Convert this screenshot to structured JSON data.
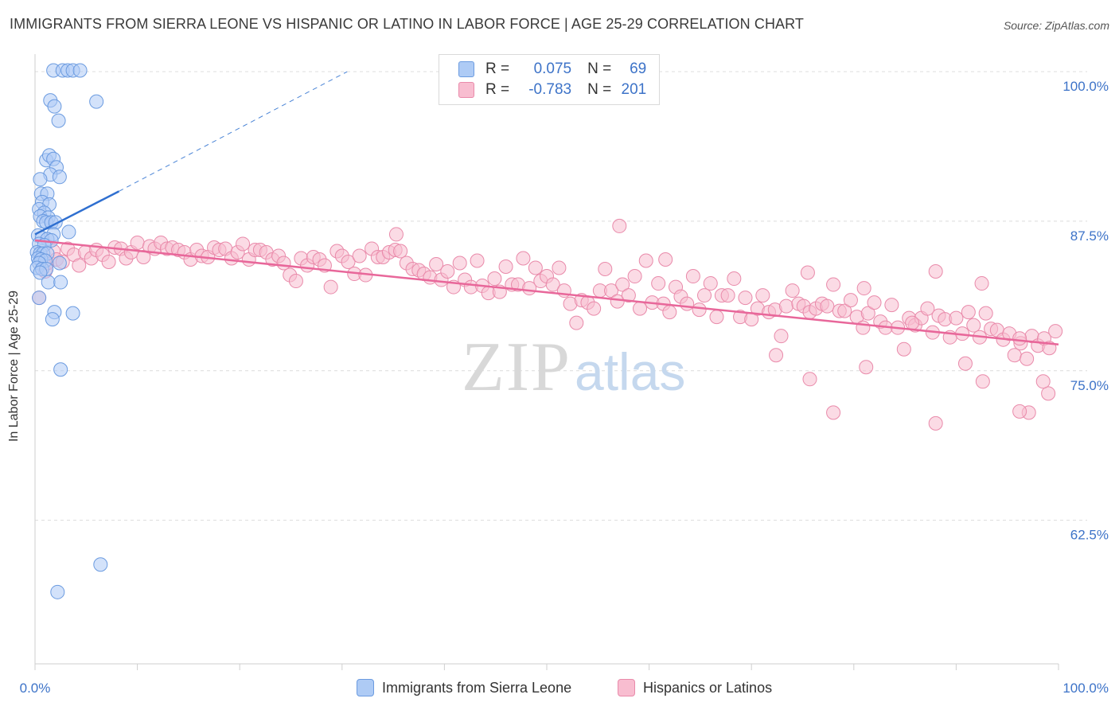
{
  "header": {
    "title": "IMMIGRANTS FROM SIERRA LEONE VS HISPANIC OR LATINO IN LABOR FORCE | AGE 25-29 CORRELATION CHART",
    "source": "Source: ZipAtlas.com"
  },
  "watermark": {
    "zip": "ZIP",
    "atlas": "atlas"
  },
  "legend": {
    "r_label": "R =",
    "n_label": "N =",
    "rows": [
      {
        "r": "0.075",
        "n": "69",
        "fill": "#aecbf5",
        "stroke": "#6b9be0"
      },
      {
        "r": "-0.783",
        "n": "201",
        "fill": "#f8bdd0",
        "stroke": "#e98aaa"
      }
    ]
  },
  "bottom_legend": {
    "items": [
      {
        "label": "Immigrants from Sierra Leone"
      },
      {
        "label": "Hispanics or Latinos"
      }
    ]
  },
  "chart_data": {
    "type": "scatter",
    "title": "IMMIGRANTS FROM SIERRA LEONE VS HISPANIC OR LATINO IN LABOR FORCE | AGE 25-29 CORRELATION CHART",
    "xlabel": "",
    "ylabel": "In Labor Force | Age 25-29",
    "xlim": [
      0,
      100
    ],
    "ylim": [
      50.5,
      101
    ],
    "x_tick_labels": [
      "0.0%",
      "100.0%"
    ],
    "y_ticks": [
      62.5,
      75.0,
      87.5,
      100.0
    ],
    "y_tick_labels": [
      "62.5%",
      "75.0%",
      "87.5%",
      "100.0%"
    ],
    "grid": "horizontal dashed",
    "legend_position": "top-center",
    "series": [
      {
        "name": "Immigrants from Sierra Leone",
        "color": "#6b9be0",
        "fill": "#aecbf5",
        "trend": {
          "x": [
            0,
            8.2
          ],
          "y": [
            86.4,
            90.0
          ],
          "extended_to": [
            30.5,
            100
          ]
        },
        "points": [
          [
            1.8,
            100.1
          ],
          [
            2.7,
            100.1
          ],
          [
            3.2,
            100.1
          ],
          [
            3.7,
            100.1
          ],
          [
            4.4,
            100.1
          ],
          [
            1.5,
            97.6
          ],
          [
            1.9,
            97.1
          ],
          [
            2.3,
            95.9
          ],
          [
            6.0,
            97.5
          ],
          [
            1.1,
            92.6
          ],
          [
            1.4,
            93.0
          ],
          [
            1.8,
            92.7
          ],
          [
            2.1,
            92.0
          ],
          [
            1.5,
            91.4
          ],
          [
            2.4,
            91.2
          ],
          [
            0.5,
            91.0
          ],
          [
            0.6,
            89.8
          ],
          [
            1.2,
            89.8
          ],
          [
            0.7,
            89.1
          ],
          [
            1.4,
            88.9
          ],
          [
            0.4,
            88.5
          ],
          [
            0.9,
            88.2
          ],
          [
            0.5,
            87.9
          ],
          [
            1.3,
            87.8
          ],
          [
            0.8,
            87.5
          ],
          [
            1.1,
            87.4
          ],
          [
            1.6,
            87.4
          ],
          [
            2.0,
            87.4
          ],
          [
            3.3,
            86.6
          ],
          [
            1.8,
            86.4
          ],
          [
            0.3,
            86.3
          ],
          [
            0.7,
            86.1
          ],
          [
            1.2,
            86.0
          ],
          [
            1.6,
            85.9
          ],
          [
            0.4,
            85.6
          ],
          [
            0.9,
            85.5
          ],
          [
            0.2,
            84.9
          ],
          [
            0.5,
            84.8
          ],
          [
            0.8,
            84.8
          ],
          [
            1.2,
            84.8
          ],
          [
            0.3,
            84.4
          ],
          [
            0.6,
            84.3
          ],
          [
            1.0,
            84.2
          ],
          [
            2.4,
            84.0
          ],
          [
            0.4,
            84.0
          ],
          [
            0.2,
            83.6
          ],
          [
            0.7,
            83.5
          ],
          [
            1.1,
            83.5
          ],
          [
            0.5,
            83.2
          ],
          [
            1.3,
            82.4
          ],
          [
            2.5,
            82.4
          ],
          [
            0.4,
            81.1
          ],
          [
            1.9,
            79.9
          ],
          [
            3.7,
            79.8
          ],
          [
            1.7,
            79.3
          ],
          [
            2.5,
            75.1
          ],
          [
            6.4,
            58.8
          ],
          [
            2.2,
            56.5
          ]
        ]
      },
      {
        "name": "Hispanics or Latinos",
        "color": "#e98aaa",
        "fill": "#f8bdd0",
        "trend": {
          "x": [
            0,
            100
          ],
          "y": [
            85.9,
            77.2
          ]
        },
        "points": [
          [
            0.4,
            81.1
          ],
          [
            1.0,
            83.3
          ],
          [
            1.2,
            84.0
          ],
          [
            1.8,
            85.0
          ],
          [
            2.1,
            84.3
          ],
          [
            2.7,
            84.1
          ],
          [
            3.2,
            85.2
          ],
          [
            3.8,
            84.7
          ],
          [
            4.3,
            83.8
          ],
          [
            4.9,
            84.9
          ],
          [
            5.5,
            84.4
          ],
          [
            6.0,
            85.1
          ],
          [
            6.6,
            84.7
          ],
          [
            7.2,
            84.1
          ],
          [
            7.8,
            85.3
          ],
          [
            8.4,
            85.2
          ],
          [
            8.9,
            84.4
          ],
          [
            9.4,
            84.9
          ],
          [
            10.0,
            85.7
          ],
          [
            10.6,
            84.5
          ],
          [
            11.2,
            85.4
          ],
          [
            11.7,
            85.2
          ],
          [
            12.3,
            85.7
          ],
          [
            12.9,
            85.2
          ],
          [
            13.4,
            85.3
          ],
          [
            14.0,
            85.1
          ],
          [
            14.6,
            84.9
          ],
          [
            15.2,
            84.3
          ],
          [
            15.8,
            85.1
          ],
          [
            16.3,
            84.6
          ],
          [
            16.9,
            84.5
          ],
          [
            17.5,
            85.3
          ],
          [
            18.0,
            85.1
          ],
          [
            18.6,
            85.2
          ],
          [
            19.2,
            84.4
          ],
          [
            19.8,
            84.9
          ],
          [
            20.3,
            85.6
          ],
          [
            20.9,
            84.3
          ],
          [
            21.5,
            85.1
          ],
          [
            22.0,
            85.1
          ],
          [
            22.6,
            84.9
          ],
          [
            23.2,
            84.3
          ],
          [
            23.8,
            84.6
          ],
          [
            24.3,
            84.0
          ],
          [
            24.9,
            83.0
          ],
          [
            25.5,
            82.5
          ],
          [
            26.0,
            84.4
          ],
          [
            26.6,
            83.8
          ],
          [
            27.2,
            84.5
          ],
          [
            27.8,
            84.3
          ],
          [
            28.3,
            83.8
          ],
          [
            28.9,
            82.0
          ],
          [
            29.5,
            85.0
          ],
          [
            30.0,
            84.6
          ],
          [
            30.6,
            84.1
          ],
          [
            31.2,
            83.1
          ],
          [
            31.7,
            84.6
          ],
          [
            32.3,
            83.0
          ],
          [
            32.9,
            85.2
          ],
          [
            33.5,
            84.5
          ],
          [
            34.0,
            84.5
          ],
          [
            34.6,
            84.9
          ],
          [
            35.2,
            85.1
          ],
          [
            35.7,
            85.0
          ],
          [
            36.3,
            84.0
          ],
          [
            36.9,
            83.5
          ],
          [
            37.5,
            83.4
          ],
          [
            38.0,
            83.1
          ],
          [
            38.6,
            82.8
          ],
          [
            39.2,
            83.9
          ],
          [
            39.7,
            82.6
          ],
          [
            40.3,
            83.3
          ],
          [
            40.9,
            82.0
          ],
          [
            41.5,
            84.0
          ],
          [
            42.0,
            82.6
          ],
          [
            42.6,
            82.0
          ],
          [
            43.2,
            84.2
          ],
          [
            43.7,
            82.1
          ],
          [
            44.3,
            81.5
          ],
          [
            44.9,
            82.7
          ],
          [
            45.4,
            81.6
          ],
          [
            46.0,
            83.7
          ],
          [
            46.6,
            82.2
          ],
          [
            47.2,
            82.2
          ],
          [
            47.7,
            84.4
          ],
          [
            48.3,
            81.9
          ],
          [
            48.9,
            83.6
          ],
          [
            49.4,
            82.5
          ],
          [
            50.0,
            82.9
          ],
          [
            50.6,
            82.2
          ],
          [
            51.2,
            83.6
          ],
          [
            51.7,
            81.7
          ],
          [
            52.3,
            80.6
          ],
          [
            52.9,
            79.0
          ],
          [
            53.4,
            80.9
          ],
          [
            54.0,
            80.7
          ],
          [
            54.6,
            80.2
          ],
          [
            55.2,
            81.7
          ],
          [
            55.7,
            83.5
          ],
          [
            56.3,
            81.7
          ],
          [
            56.9,
            80.8
          ],
          [
            57.4,
            82.2
          ],
          [
            58.0,
            81.3
          ],
          [
            58.6,
            82.9
          ],
          [
            59.1,
            80.2
          ],
          [
            59.7,
            84.2
          ],
          [
            60.3,
            80.7
          ],
          [
            60.9,
            82.3
          ],
          [
            61.4,
            80.6
          ],
          [
            62.0,
            79.9
          ],
          [
            62.6,
            82.0
          ],
          [
            63.1,
            81.2
          ],
          [
            63.7,
            80.6
          ],
          [
            64.3,
            82.9
          ],
          [
            64.9,
            80.1
          ],
          [
            65.4,
            81.3
          ],
          [
            66.0,
            82.3
          ],
          [
            66.6,
            79.5
          ],
          [
            67.1,
            81.3
          ],
          [
            67.7,
            81.3
          ],
          [
            68.3,
            82.7
          ],
          [
            68.9,
            79.5
          ],
          [
            69.4,
            81.1
          ],
          [
            70.0,
            79.3
          ],
          [
            70.6,
            80.2
          ],
          [
            71.1,
            81.3
          ],
          [
            71.7,
            79.9
          ],
          [
            72.3,
            80.1
          ],
          [
            72.9,
            77.9
          ],
          [
            73.4,
            80.4
          ],
          [
            74.0,
            81.7
          ],
          [
            74.6,
            80.6
          ],
          [
            75.1,
            80.4
          ],
          [
            75.7,
            79.9
          ],
          [
            76.3,
            80.2
          ],
          [
            76.9,
            80.6
          ],
          [
            77.4,
            80.4
          ],
          [
            78.0,
            82.2
          ],
          [
            78.6,
            80.0
          ],
          [
            79.1,
            80.0
          ],
          [
            79.7,
            80.9
          ],
          [
            80.3,
            79.5
          ],
          [
            80.9,
            78.6
          ],
          [
            81.4,
            79.8
          ],
          [
            82.0,
            80.7
          ],
          [
            82.6,
            79.1
          ],
          [
            83.1,
            78.6
          ],
          [
            83.7,
            80.5
          ],
          [
            84.3,
            78.6
          ],
          [
            84.9,
            76.8
          ],
          [
            85.4,
            79.4
          ],
          [
            86.0,
            78.8
          ],
          [
            86.6,
            79.4
          ],
          [
            87.2,
            80.2
          ],
          [
            87.7,
            78.2
          ],
          [
            88.3,
            79.6
          ],
          [
            88.9,
            79.3
          ],
          [
            89.4,
            77.8
          ],
          [
            90.0,
            79.4
          ],
          [
            90.6,
            78.1
          ],
          [
            91.2,
            79.9
          ],
          [
            91.7,
            78.8
          ],
          [
            92.3,
            77.8
          ],
          [
            92.9,
            79.8
          ],
          [
            93.4,
            78.5
          ],
          [
            94.0,
            78.4
          ],
          [
            94.6,
            77.6
          ],
          [
            95.2,
            78.1
          ],
          [
            95.7,
            76.3
          ],
          [
            96.3,
            77.3
          ],
          [
            96.9,
            76.0
          ],
          [
            97.4,
            77.9
          ],
          [
            98.0,
            77.1
          ],
          [
            98.6,
            77.7
          ],
          [
            99.1,
            76.9
          ],
          [
            99.7,
            78.3
          ],
          [
            61.6,
            84.3
          ],
          [
            75.5,
            83.2
          ],
          [
            96.2,
            77.7
          ],
          [
            35.3,
            86.4
          ],
          [
            57.1,
            87.1
          ],
          [
            88.0,
            83.3
          ],
          [
            92.5,
            82.3
          ],
          [
            81.2,
            75.3
          ],
          [
            85.7,
            79.0
          ],
          [
            75.7,
            74.3
          ],
          [
            92.6,
            74.1
          ],
          [
            99.0,
            73.1
          ],
          [
            97.1,
            71.5
          ],
          [
            98.5,
            74.1
          ],
          [
            72.4,
            76.3
          ],
          [
            78.0,
            71.5
          ],
          [
            88.0,
            70.6
          ],
          [
            96.2,
            71.6
          ],
          [
            81.0,
            81.9
          ],
          [
            90.9,
            75.6
          ]
        ]
      }
    ]
  }
}
